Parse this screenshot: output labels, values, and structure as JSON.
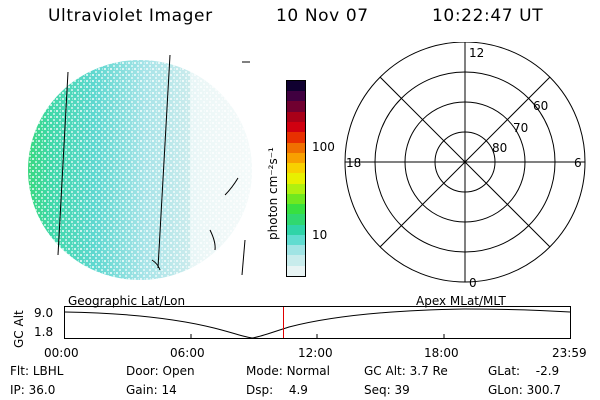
{
  "header": {
    "instrument": "Ultraviolet Imager",
    "date": "10 Nov 07",
    "time": "10:22:47 UT"
  },
  "colorbar": {
    "unit_label": "photon cm⁻²s⁻¹",
    "ticks": [
      "100",
      "10"
    ],
    "colors": [
      "#e8f4f4",
      "#c8ecec",
      "#a0e4e4",
      "#60dcd0",
      "#30d4a8",
      "#30d870",
      "#38e040",
      "#70e820",
      "#b0f010",
      "#e8f000",
      "#f8d000",
      "#f8a000",
      "#f07000",
      "#e83000",
      "#d00010",
      "#a80018",
      "#700030",
      "#400040",
      "#100030"
    ]
  },
  "polar_plot": {
    "mlt_labels": {
      "top": "12",
      "right": "6",
      "bottom": "0",
      "left": "18"
    },
    "lat_labels": [
      "60",
      "70",
      "80"
    ]
  },
  "orbit_panel": {
    "ylabel": "GC Alt",
    "ytick_top": "9.0",
    "ytick_bottom": "1.8",
    "left_title": "Geographic Lat/Lon",
    "right_title": "Apex MLat/MLT",
    "time_ticks": [
      "00:00",
      "06:00",
      "12:00",
      "18:00",
      "23:59"
    ],
    "current_time_fraction": 0.4326
  },
  "info": {
    "flt_label": "Flt:",
    "flt_value": "LBHL",
    "ip_label": "IP:",
    "ip_value": "36.0",
    "door_label": "Door:",
    "door_value": "Open",
    "gain_label": "Gain:",
    "gain_value": "14",
    "mode_label": "Mode:",
    "mode_value": "Normal",
    "dsp_label": "Dsp:",
    "dsp_value": "4.9",
    "gcalt_label": "GC Alt:",
    "gcalt_value": "3.7 Re",
    "seq_label": "Seq:",
    "seq_value": "39",
    "glat_label": "GLat:",
    "glat_value": "-2.9",
    "glon_label": "GLon:",
    "glon_value": "300.7"
  }
}
